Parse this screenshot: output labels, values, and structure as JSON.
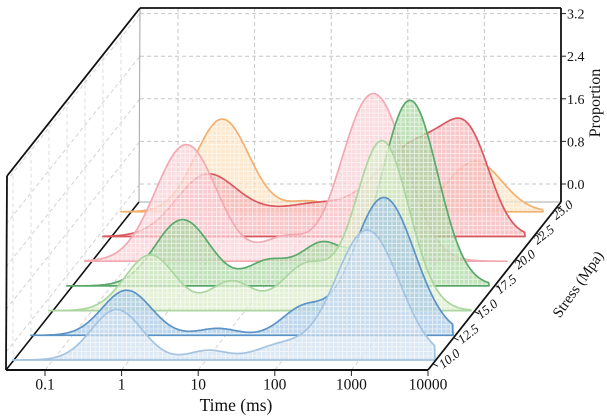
{
  "chart_data": {
    "type": "area",
    "subtype": "3d-ridgeline",
    "title": "",
    "xlabel": "Time (ms)",
    "ylabel": "Stress (Mpa)",
    "zlabel": "Proportion",
    "x_scale": "log",
    "x_tick_labels": [
      "0.1",
      "1",
      "10",
      "100",
      "1000",
      "10000"
    ],
    "y_tick_labels": [
      "10.0",
      "12.5",
      "15.0",
      "17.5",
      "20.0",
      "22.5",
      "25.0"
    ],
    "z_tick_labels": [
      "0.0",
      "0.8",
      "1.6",
      "2.4",
      "3.2"
    ],
    "x_range_ms": [
      0.03,
      10000
    ],
    "z_range": [
      0.0,
      3.2
    ],
    "grid": true,
    "peaks_format": "[time_ms, proportion_height, sigma_in_log10_decades] gaussian components per distribution",
    "series": [
      {
        "stress": "10.0",
        "stroke": "#a3c4e1",
        "fill": "#cfdfee",
        "peaks": [
          [
            0.7,
            0.95,
            0.33
          ],
          [
            11,
            0.18,
            0.25
          ],
          [
            95,
            0.27,
            0.33
          ],
          [
            1300,
            2.45,
            0.42
          ]
        ]
      },
      {
        "stress": "12.5",
        "stroke": "#5b93c6",
        "fill": "#a6c8e4",
        "peaks": [
          [
            0.55,
            0.85,
            0.32
          ],
          [
            8.5,
            0.13,
            0.25
          ],
          [
            110,
            0.5,
            0.28
          ],
          [
            1250,
            2.6,
            0.4
          ]
        ]
      },
      {
        "stress": "15.0",
        "stroke": "#abd6a0",
        "fill": "#d9ecc9",
        "peaks": [
          [
            0.65,
            1.05,
            0.33
          ],
          [
            7.5,
            0.55,
            0.28
          ],
          [
            70,
            0.85,
            0.32
          ],
          [
            690,
            3.2,
            0.35
          ]
        ]
      },
      {
        "stress": "17.5",
        "stroke": "#5aa86b",
        "fill": "#abd7a2",
        "peaks": [
          [
            1.0,
            1.25,
            0.36
          ],
          [
            13,
            0.45,
            0.27
          ],
          [
            68,
            0.8,
            0.3
          ],
          [
            930,
            3.5,
            0.36
          ]
        ]
      },
      {
        "stress": "20.0",
        "stroke": "#f3a9b2",
        "fill": "#f9cfd4",
        "peaks": [
          [
            0.65,
            2.2,
            0.4
          ],
          [
            13,
            0.45,
            0.3
          ],
          [
            90,
            0.8,
            0.3
          ],
          [
            220,
            2.75,
            0.38
          ]
        ]
      },
      {
        "stress": "22.5",
        "stroke": "#d85a60",
        "fill": "#f5b2b5",
        "peaks": [
          [
            0.7,
            1.15,
            0.4
          ],
          [
            4,
            0.3,
            0.35
          ],
          [
            15,
            0.4,
            0.35
          ],
          [
            60,
            0.45,
            0.4
          ],
          [
            180,
            0.7,
            0.33
          ],
          [
            650,
            1.55,
            0.4
          ],
          [
            2000,
            1.3,
            0.28
          ]
        ]
      },
      {
        "stress": "25.0",
        "stroke": "#f1b070",
        "fill": "#fbe0bd",
        "peaks": [
          [
            0.65,
            1.75,
            0.35
          ],
          [
            9,
            0.2,
            0.28
          ],
          [
            1300,
            0.95,
            0.35
          ]
        ]
      }
    ]
  }
}
